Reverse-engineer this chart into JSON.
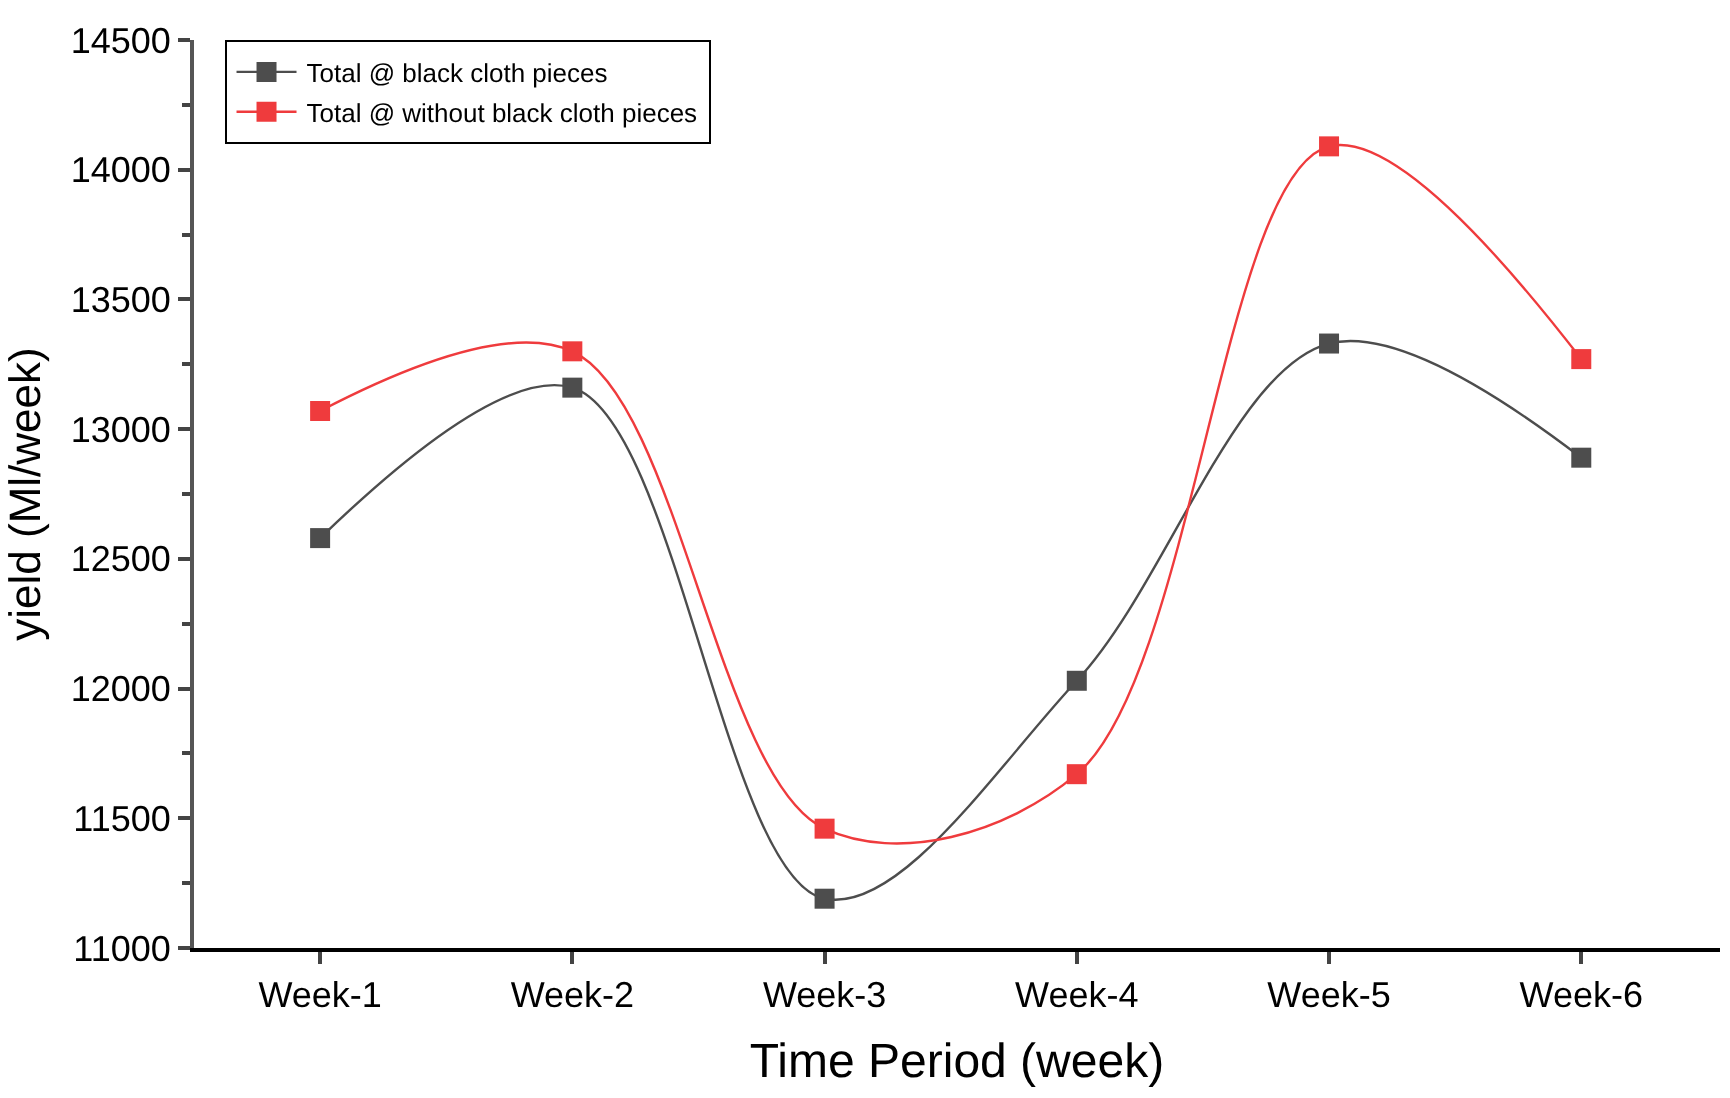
{
  "chart_data": {
    "type": "line",
    "xlabel": "Time Period (week)",
    "ylabel": "yield (Ml/week)",
    "categories": [
      "Week-1",
      "Week-2",
      "Week-3",
      "Week-4",
      "Week-5",
      "Week-6"
    ],
    "series": [
      {
        "name": "Total @ black cloth pieces",
        "color": "#4d4d4d",
        "values": [
          12580,
          13160,
          11190,
          12030,
          13330,
          12890
        ]
      },
      {
        "name": "Total @ without black cloth pieces",
        "color": "#ef3b3d",
        "values": [
          13070,
          13300,
          11460,
          11670,
          14090,
          13270
        ]
      }
    ],
    "ylim": [
      11000,
      14500
    ],
    "yticks": [
      11000,
      11500,
      12000,
      12500,
      13000,
      13500,
      14000,
      14500
    ],
    "legend": "top left",
    "marker": "square",
    "line_style": "solid"
  }
}
